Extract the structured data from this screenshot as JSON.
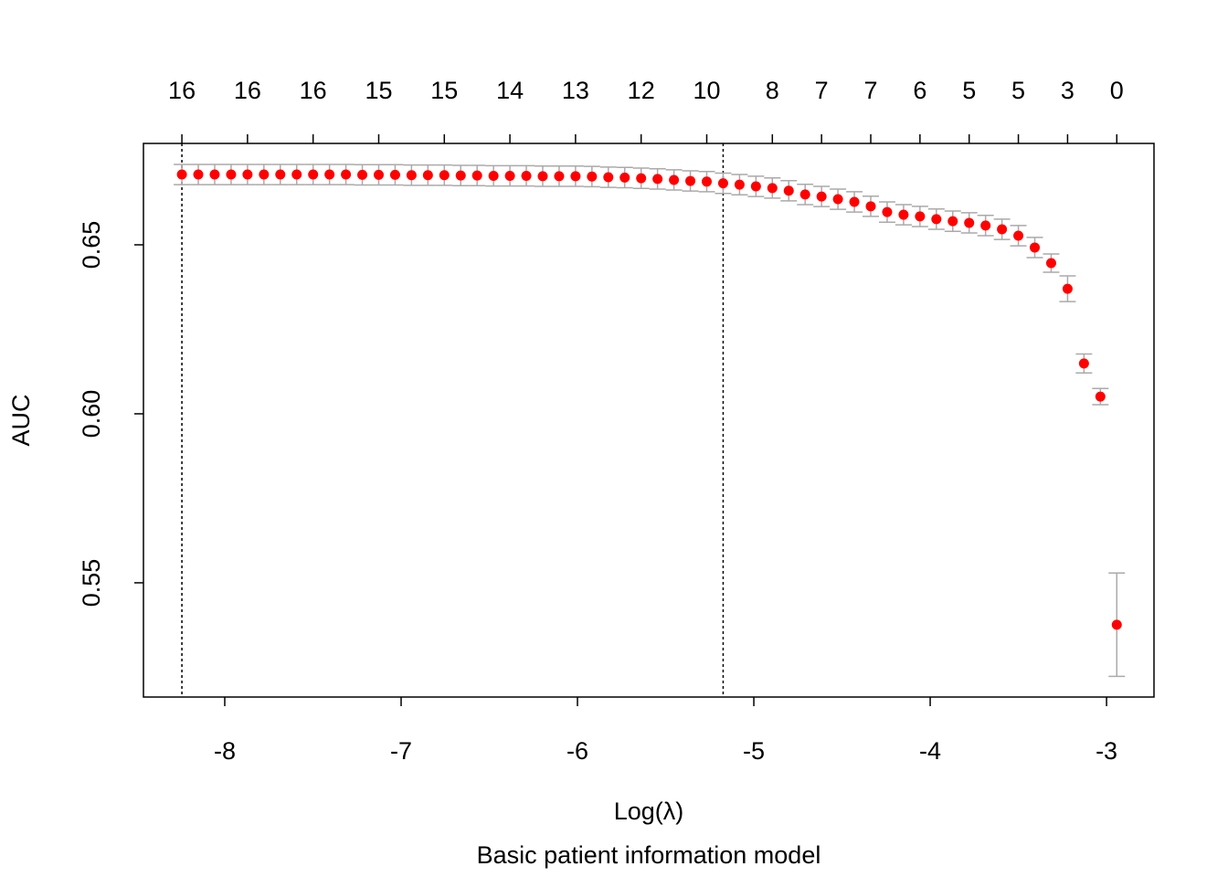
{
  "chart_data": {
    "type": "scatter",
    "xlabel": "Log(λ)",
    "ylabel": "AUC",
    "subtitle": "Basic patient information model",
    "x": [
      -8.243,
      -8.15,
      -8.057,
      -7.964,
      -7.871,
      -7.778,
      -7.685,
      -7.592,
      -7.499,
      -7.406,
      -7.313,
      -7.22,
      -7.127,
      -7.034,
      -6.941,
      -6.848,
      -6.755,
      -6.662,
      -6.569,
      -6.476,
      -6.383,
      -6.29,
      -6.197,
      -6.104,
      -6.011,
      -5.918,
      -5.825,
      -5.732,
      -5.639,
      -5.546,
      -5.453,
      -5.36,
      -5.267,
      -5.174,
      -5.081,
      -4.988,
      -4.895,
      -4.802,
      -4.709,
      -4.616,
      -4.523,
      -4.43,
      -4.337,
      -4.244,
      -4.151,
      -4.058,
      -3.965,
      -3.872,
      -3.779,
      -3.686,
      -3.593,
      -3.5,
      -3.407,
      -3.314,
      -3.221,
      -3.128,
      -3.035,
      -2.942
    ],
    "series": [
      {
        "color": "#ff0000",
        "values": [
          0.6708,
          0.6708,
          0.6708,
          0.6708,
          0.6708,
          0.6708,
          0.6708,
          0.6708,
          0.6708,
          0.6708,
          0.6708,
          0.6707,
          0.6707,
          0.6707,
          0.6706,
          0.6706,
          0.6706,
          0.6705,
          0.6705,
          0.6704,
          0.6704,
          0.6704,
          0.6703,
          0.6703,
          0.6703,
          0.6702,
          0.67,
          0.6699,
          0.6697,
          0.6695,
          0.6692,
          0.6689,
          0.6687,
          0.6682,
          0.6678,
          0.6673,
          0.6668,
          0.666,
          0.6649,
          0.6643,
          0.6635,
          0.6627,
          0.6614,
          0.6597,
          0.6589,
          0.6584,
          0.6576,
          0.657,
          0.6565,
          0.6557,
          0.6546,
          0.6527,
          0.6492,
          0.6446,
          0.637,
          0.6149,
          0.6051,
          0.5376
        ],
        "error": [
          0.003,
          0.003,
          0.003,
          0.003,
          0.003,
          0.003,
          0.003,
          0.003,
          0.003,
          0.003,
          0.003,
          0.003,
          0.003,
          0.003,
          0.003,
          0.003,
          0.003,
          0.003,
          0.003,
          0.003,
          0.003,
          0.003,
          0.003,
          0.003,
          0.003,
          0.003,
          0.003,
          0.003,
          0.003,
          0.003,
          0.003,
          0.003,
          0.003,
          0.003,
          0.003,
          0.003,
          0.003,
          0.003,
          0.003,
          0.003,
          0.003,
          0.003,
          0.003,
          0.003,
          0.003,
          0.003,
          0.003,
          0.003,
          0.003,
          0.003,
          0.003,
          0.003,
          0.003,
          0.0027,
          0.0038,
          0.0028,
          0.0024,
          0.0153
        ],
        "error_color": "#aaaaaa"
      }
    ],
    "xlim": [
      -8.461,
      -2.731
    ],
    "ylim": [
      0.5162,
      0.68
    ],
    "xticks": [
      -8,
      -7,
      -6,
      -5,
      -4,
      -3
    ],
    "yticks": [
      0.55,
      {
        "value": 0.6,
        "label": "0.60"
      },
      0.65
    ],
    "top_ticks": [
      {
        "value": -8.243,
        "label": "16"
      },
      {
        "value": -7.871,
        "label": "16"
      },
      {
        "value": -7.499,
        "label": "16"
      },
      {
        "value": -7.127,
        "label": "15"
      },
      {
        "value": -6.755,
        "label": "15"
      },
      {
        "value": -6.383,
        "label": "14"
      },
      {
        "value": -6.011,
        "label": "13"
      },
      {
        "value": -5.639,
        "label": "12"
      },
      {
        "value": -5.267,
        "label": "10"
      },
      {
        "value": -4.895,
        "label": "8"
      },
      {
        "value": -4.616,
        "label": "7"
      },
      {
        "value": -4.337,
        "label": "7"
      },
      {
        "value": -4.058,
        "label": "6"
      },
      {
        "value": -3.779,
        "label": "5"
      },
      {
        "value": -3.5,
        "label": "5"
      },
      {
        "value": -3.221,
        "label": "3"
      },
      {
        "value": -2.942,
        "label": "0"
      }
    ],
    "vlines": [
      -8.243,
      -5.174
    ]
  }
}
